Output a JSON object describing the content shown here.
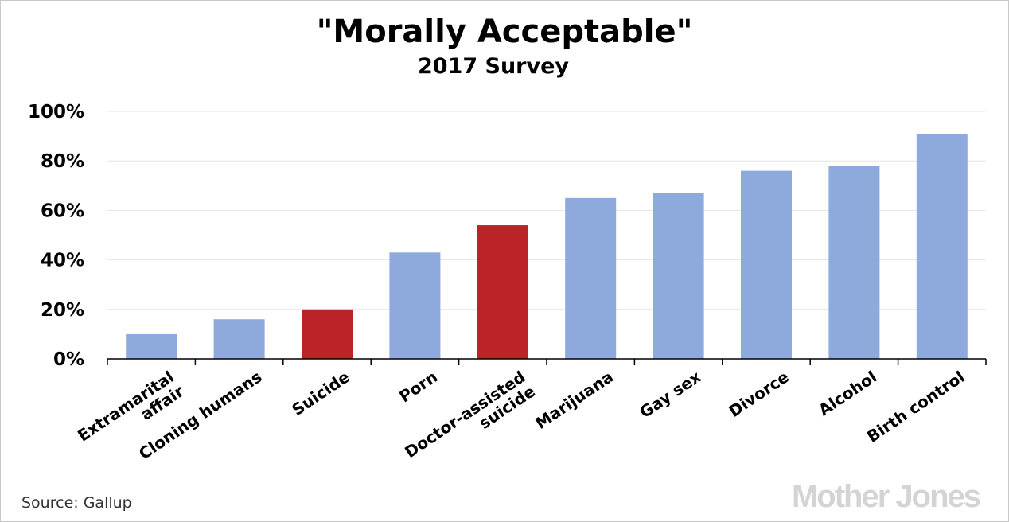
{
  "chart_data": {
    "type": "bar",
    "title": "\"Morally Acceptable\"",
    "subtitle": "2017 Survey",
    "categories": [
      "Extramarital affair",
      "Cloning humans",
      "Suicide",
      "Porn",
      "Doctor-assisted suicide",
      "Marijuana",
      "Gay sex",
      "Divorce",
      "Alcohol",
      "Birth control"
    ],
    "category_lines": [
      [
        "Extramarital",
        "affair"
      ],
      [
        "Cloning humans"
      ],
      [
        "Suicide"
      ],
      [
        "Porn"
      ],
      [
        "Doctor-assisted",
        "suicide"
      ],
      [
        "Marijuana"
      ],
      [
        "Gay sex"
      ],
      [
        "Divorce"
      ],
      [
        "Alcohol"
      ],
      [
        "Birth control"
      ]
    ],
    "values": [
      10,
      16,
      20,
      43,
      54,
      65,
      67,
      76,
      78,
      91
    ],
    "bar_colors": [
      "#8eaadc",
      "#8eaadc",
      "#bb2426",
      "#8eaadc",
      "#bb2426",
      "#8eaadc",
      "#8eaadc",
      "#8eaadc",
      "#8eaadc",
      "#8eaadc"
    ],
    "ylim": [
      0,
      100
    ],
    "yticks": [
      "0%",
      "20%",
      "40%",
      "60%",
      "80%",
      "100%"
    ],
    "ytick_values": [
      0,
      20,
      40,
      60,
      80,
      100
    ],
    "xlabel": "",
    "ylabel": "",
    "grid": true,
    "legend": "none"
  },
  "source": "Source:  Gallup",
  "logo_text": "Mother Jones",
  "colors": {
    "default_bar": "#8eaadc",
    "highlight_bar": "#bb2426",
    "grid": "#e6e6e6",
    "axis": "#000000"
  }
}
